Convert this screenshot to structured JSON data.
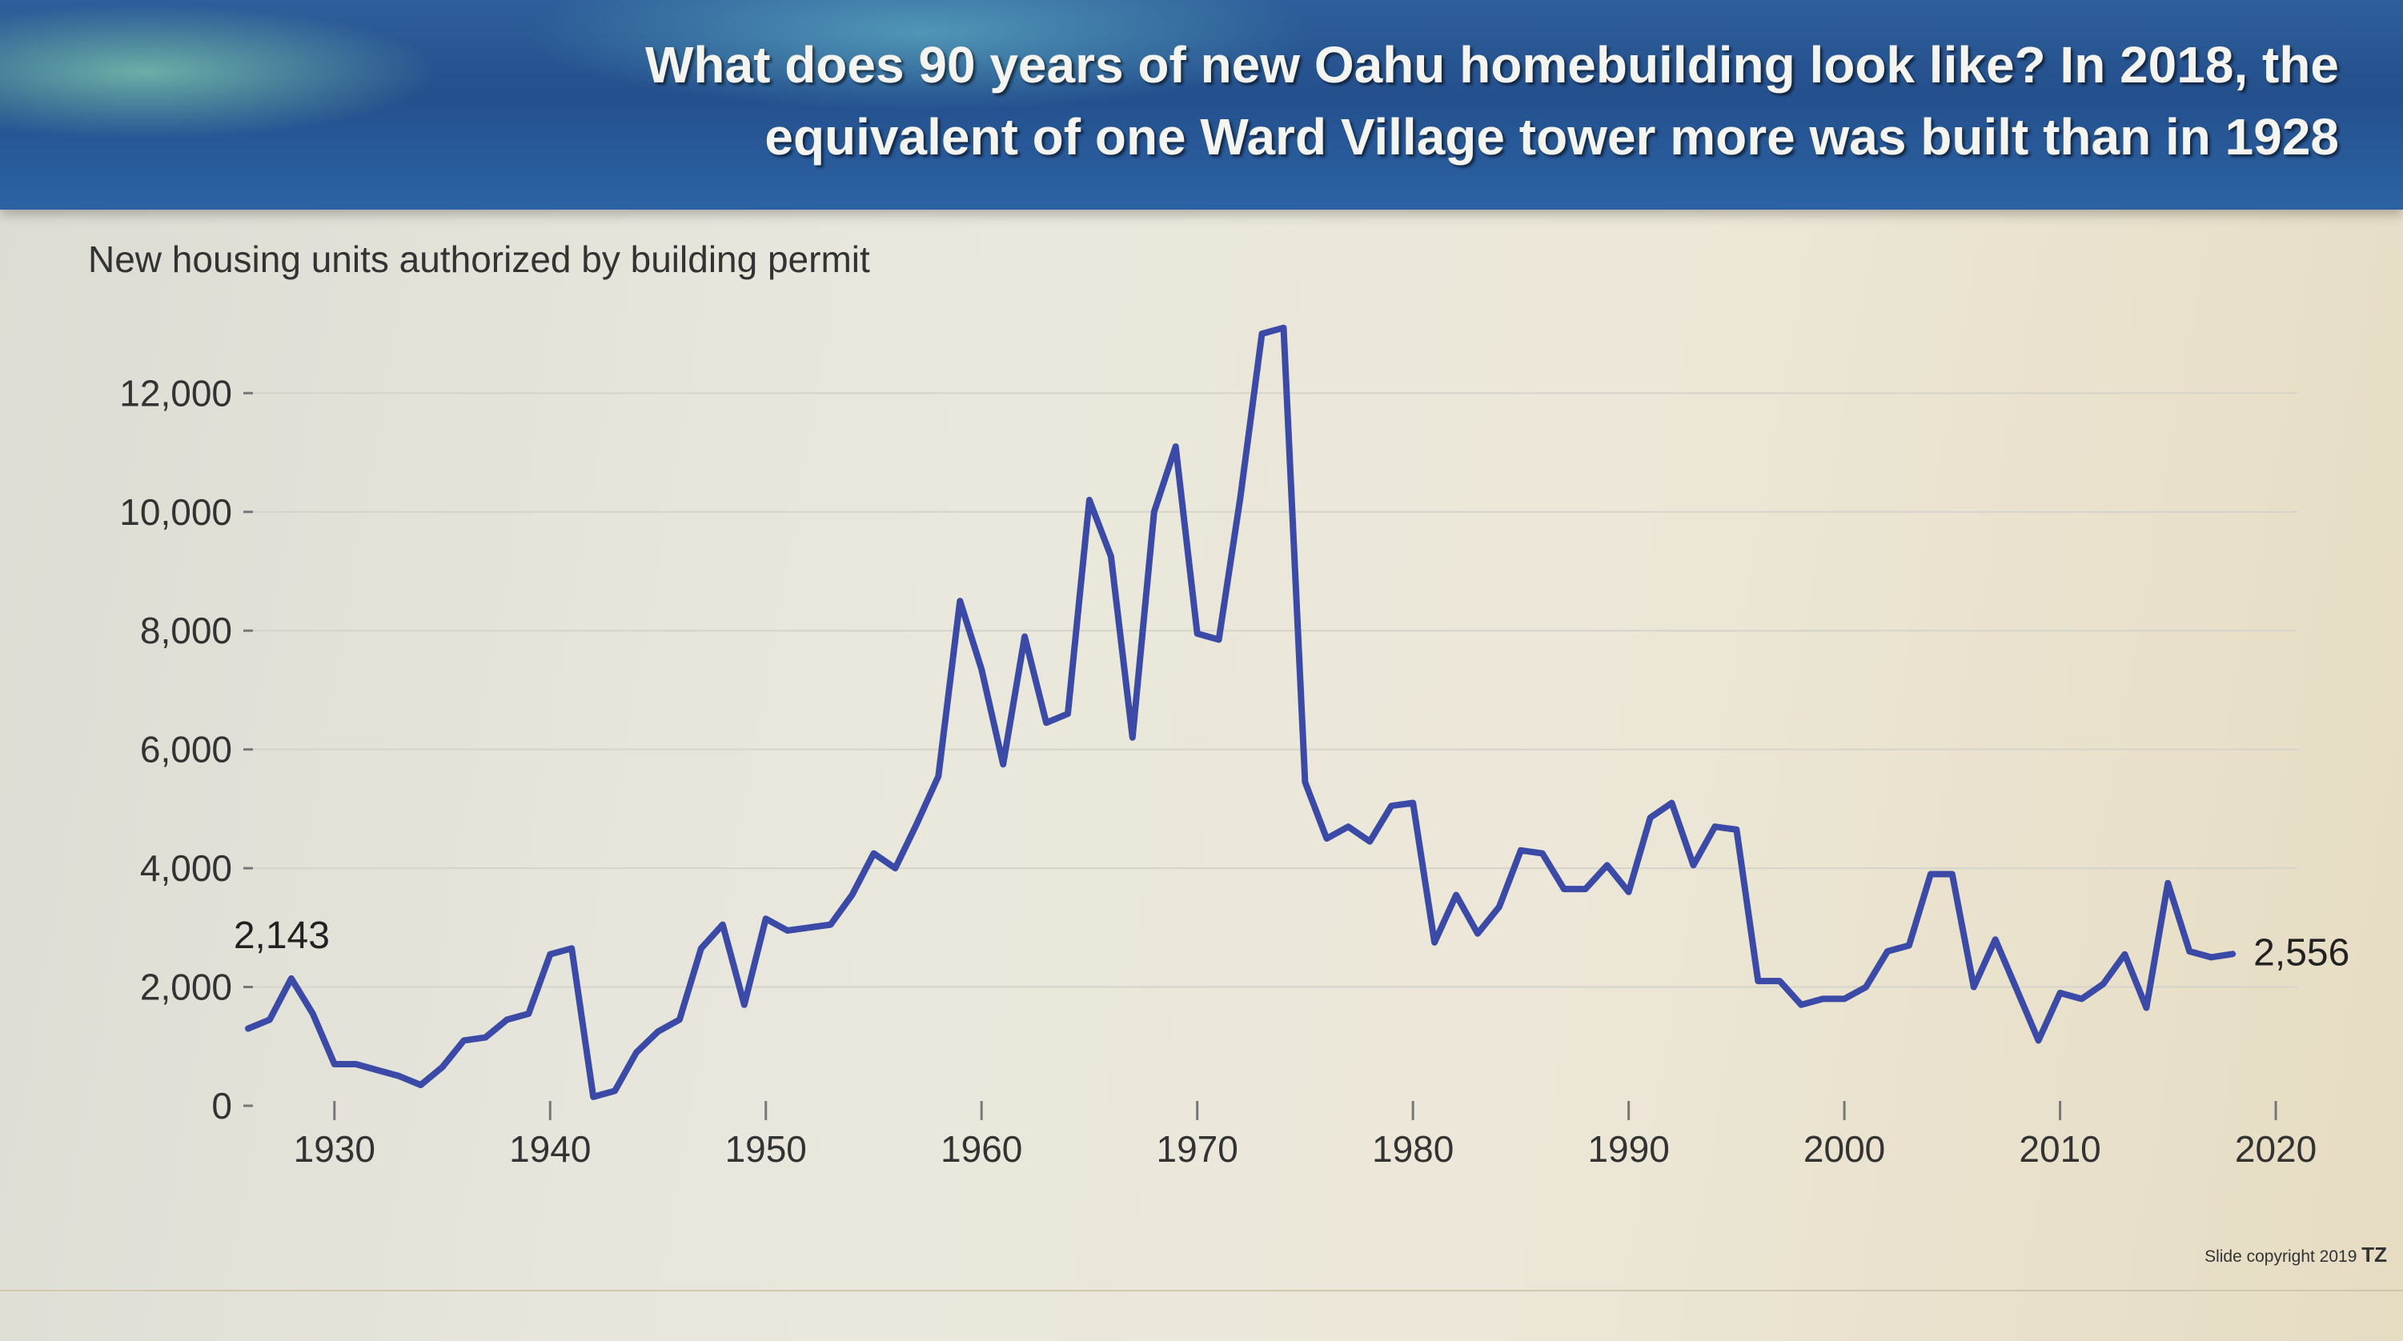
{
  "header": {
    "title_line1": "What does 90 years of new Oahu homebuilding look like?  In 2018, the",
    "title_line2": "equivalent of one Ward Village tower more was built than in 1928"
  },
  "footer": {
    "copyright": "Slide copyright 2019",
    "logo_text": "TZ"
  },
  "colors": {
    "line": "#3a4aa6",
    "banner": "#24508d"
  },
  "chart_data": {
    "type": "line",
    "title": "",
    "ylabel": "New housing units authorized by building permit",
    "xlabel": "",
    "ylim": [
      0,
      13500
    ],
    "xlim": [
      1926,
      2021
    ],
    "yticks": [
      0,
      2000,
      4000,
      6000,
      8000,
      10000,
      12000
    ],
    "ytick_labels": [
      "0",
      "2,000",
      "4,000",
      "6,000",
      "8,000",
      "10,000",
      "12,000"
    ],
    "xticks": [
      1930,
      1940,
      1950,
      1960,
      1970,
      1980,
      1990,
      2000,
      2010,
      2020
    ],
    "xtick_labels": [
      "1930",
      "1940",
      "1950",
      "1960",
      "1970",
      "1980",
      "1990",
      "2000",
      "2010",
      "2020"
    ],
    "grid": true,
    "annotations": [
      {
        "x": 1928,
        "y": 2143,
        "text": "2,143"
      },
      {
        "x": 2018,
        "y": 2556,
        "text": "2,556"
      }
    ],
    "x": [
      1926,
      1927,
      1928,
      1929,
      1930,
      1931,
      1932,
      1933,
      1934,
      1935,
      1936,
      1937,
      1938,
      1939,
      1940,
      1941,
      1942,
      1943,
      1944,
      1945,
      1946,
      1947,
      1948,
      1949,
      1950,
      1951,
      1952,
      1953,
      1954,
      1955,
      1956,
      1957,
      1958,
      1959,
      1960,
      1961,
      1962,
      1963,
      1964,
      1965,
      1966,
      1967,
      1968,
      1969,
      1970,
      1971,
      1972,
      1973,
      1974,
      1975,
      1976,
      1977,
      1978,
      1979,
      1980,
      1981,
      1982,
      1983,
      1984,
      1985,
      1986,
      1987,
      1988,
      1989,
      1990,
      1991,
      1992,
      1993,
      1994,
      1995,
      1996,
      1997,
      1998,
      1999,
      2000,
      2001,
      2002,
      2003,
      2004,
      2005,
      2006,
      2007,
      2008,
      2009,
      2010,
      2011,
      2012,
      2013,
      2014,
      2015,
      2016,
      2017,
      2018
    ],
    "y": [
      1300,
      1450,
      2143,
      1550,
      700,
      700,
      600,
      500,
      350,
      650,
      1100,
      1150,
      1450,
      1550,
      2550,
      2650,
      150,
      250,
      900,
      1250,
      1450,
      2650,
      3050,
      1700,
      3150,
      2950,
      3000,
      3050,
      3550,
      4250,
      4000,
      4750,
      5550,
      8500,
      7350,
      5750,
      7900,
      6450,
      6600,
      10200,
      9250,
      6200,
      10000,
      11100,
      7950,
      7850,
      10250,
      13000,
      13100,
      5450,
      4500,
      4700,
      4450,
      5050,
      5100,
      2750,
      3550,
      2900,
      3350,
      4300,
      4250,
      3650,
      3650,
      4050,
      3600,
      4850,
      5100,
      4050,
      4700,
      4650,
      2100,
      2100,
      1700,
      1800,
      1800,
      2000,
      2600,
      2700,
      3900,
      3900,
      2000,
      2800,
      1950,
      1100,
      1900,
      1800,
      2050,
      2550,
      1650,
      3750,
      2600,
      2500,
      2556
    ]
  }
}
